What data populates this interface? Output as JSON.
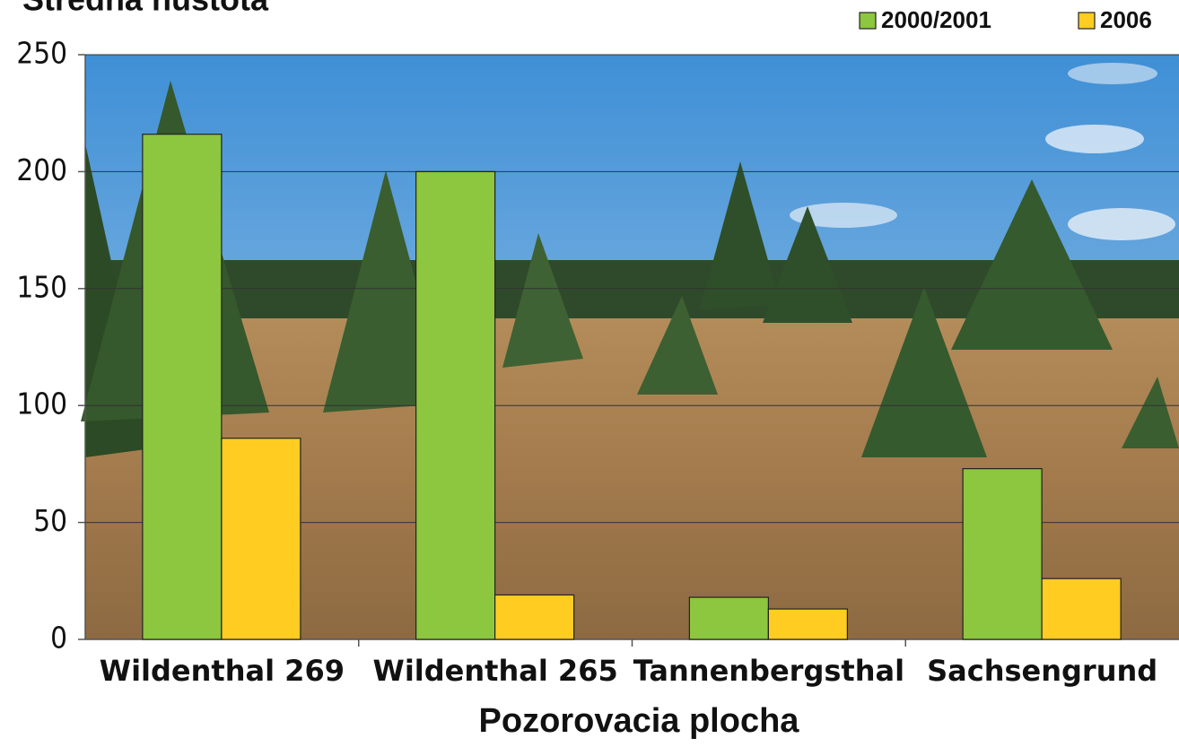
{
  "chart_data": {
    "type": "bar",
    "title": "Stredná hustota",
    "x_label": "Pozorovacia plocha",
    "categories": [
      "Wildenthal 269",
      "Wildenthal 265",
      "Tannenbergsthal",
      "Sachsengrund"
    ],
    "series": [
      {
        "name": "2000/2001",
        "color": "#8dc63f",
        "values": [
          216,
          200,
          18,
          73
        ]
      },
      {
        "name": "2006",
        "color": "#ffcc22",
        "values": [
          86,
          19,
          13,
          26
        ]
      }
    ],
    "ylim": [
      0,
      250
    ],
    "yticks": [
      0,
      50,
      100,
      150,
      200,
      250
    ],
    "grid": true
  }
}
